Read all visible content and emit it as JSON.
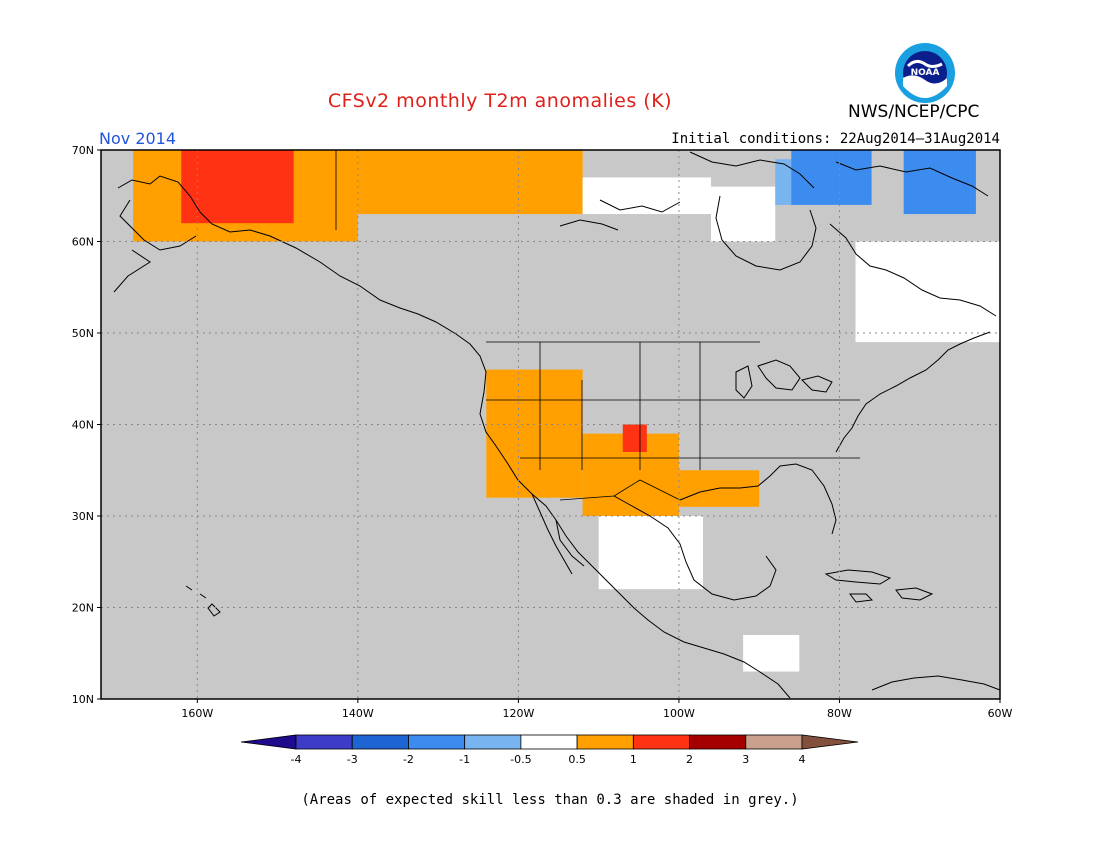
{
  "header": {
    "title": "CFSv2 monthly T2m anomalies (K)",
    "agency": "NWS/NCEP/CPC",
    "logo_text": "NOAA",
    "valid_month": "Nov 2014",
    "initial_conditions": "Initial conditions: 22Aug2014–31Aug2014"
  },
  "map": {
    "lon_range": [
      -172,
      -60
    ],
    "lat_range": [
      10,
      70
    ],
    "lon_ticks": [
      {
        "value": -160,
        "label": "160W"
      },
      {
        "value": -140,
        "label": "140W"
      },
      {
        "value": -120,
        "label": "120W"
      },
      {
        "value": -100,
        "label": "100W"
      },
      {
        "value": -80,
        "label": "80W"
      },
      {
        "value": -60,
        "label": "60W"
      }
    ],
    "lat_ticks": [
      {
        "value": 10,
        "label": "10N"
      },
      {
        "value": 20,
        "label": "20N"
      },
      {
        "value": 30,
        "label": "30N"
      },
      {
        "value": 40,
        "label": "40N"
      },
      {
        "value": 50,
        "label": "50N"
      },
      {
        "value": 60,
        "label": "60N"
      },
      {
        "value": 70,
        "label": "70N"
      }
    ],
    "grid": "dotted",
    "background_color": "#c8c8c8",
    "anomaly_regions": [
      {
        "name": "alaska-warm",
        "category": "0.5 to 1",
        "lon": [
          -168,
          -140
        ],
        "lat": [
          60,
          70
        ]
      },
      {
        "name": "alaska-strong",
        "category": "1 to 2",
        "lon": [
          -162,
          -148
        ],
        "lat": [
          62,
          70
        ]
      },
      {
        "name": "yukon-warm",
        "category": "0.5 to 1",
        "lon": [
          -140,
          -112
        ],
        "lat": [
          63,
          70
        ]
      },
      {
        "name": "arctic-neutral",
        "category": "-0.5 to 0.5",
        "lon": [
          -112,
          -96
        ],
        "lat": [
          63,
          67
        ]
      },
      {
        "name": "hudson-neutral",
        "category": "-0.5 to 0.5",
        "lon": [
          -96,
          -88
        ],
        "lat": [
          60,
          66
        ]
      },
      {
        "name": "baffin-cool",
        "category": "-1 to -0.5",
        "lon": [
          -88,
          -82
        ],
        "lat": [
          64,
          69
        ]
      },
      {
        "name": "baffin-cold",
        "category": "-2 to -1",
        "lon": [
          -86,
          -76
        ],
        "lat": [
          64,
          70
        ]
      },
      {
        "name": "greenland-cold",
        "category": "-2 to -1",
        "lon": [
          -72,
          -63
        ],
        "lat": [
          63,
          70
        ]
      },
      {
        "name": "quebec-neutral",
        "category": "-0.5 to 0.5",
        "lon": [
          -78,
          -60
        ],
        "lat": [
          49,
          60
        ]
      },
      {
        "name": "west-us-warm",
        "category": "0.5 to 1",
        "lon": [
          -124,
          -112
        ],
        "lat": [
          32,
          46
        ]
      },
      {
        "name": "southwest-warm",
        "category": "0.5 to 1",
        "lon": [
          -112,
          -100
        ],
        "lat": [
          30,
          39
        ]
      },
      {
        "name": "south-central-warm",
        "category": "0.5 to 1",
        "lon": [
          -100,
          -90
        ],
        "lat": [
          31,
          35
        ]
      },
      {
        "name": "four-corners-strong",
        "category": "1 to 2",
        "lon": [
          -107,
          -104
        ],
        "lat": [
          37,
          40
        ]
      },
      {
        "name": "mexico-neutral",
        "category": "-0.5 to 0.5",
        "lon": [
          -110,
          -97
        ],
        "lat": [
          22,
          30
        ]
      },
      {
        "name": "central-america-neutral",
        "category": "-0.5 to 0.5",
        "lon": [
          -92,
          -85
        ],
        "lat": [
          13,
          17
        ]
      }
    ]
  },
  "legend": {
    "labels": [
      "-4",
      "-3",
      "-2",
      "-1",
      "-0.5",
      "0.5",
      "1",
      "2",
      "3",
      "4"
    ],
    "colors": [
      "#1e0a8c",
      "#3c3cc8",
      "#1e64d2",
      "#3c8cf0",
      "#78b4f0",
      "#ffffff",
      "#ffa000",
      "#ff3214",
      "#a50000",
      "#c8a08c",
      "#82503c"
    ]
  },
  "footnote": "(Areas of expected skill less than 0.3 are shaded in grey.)"
}
